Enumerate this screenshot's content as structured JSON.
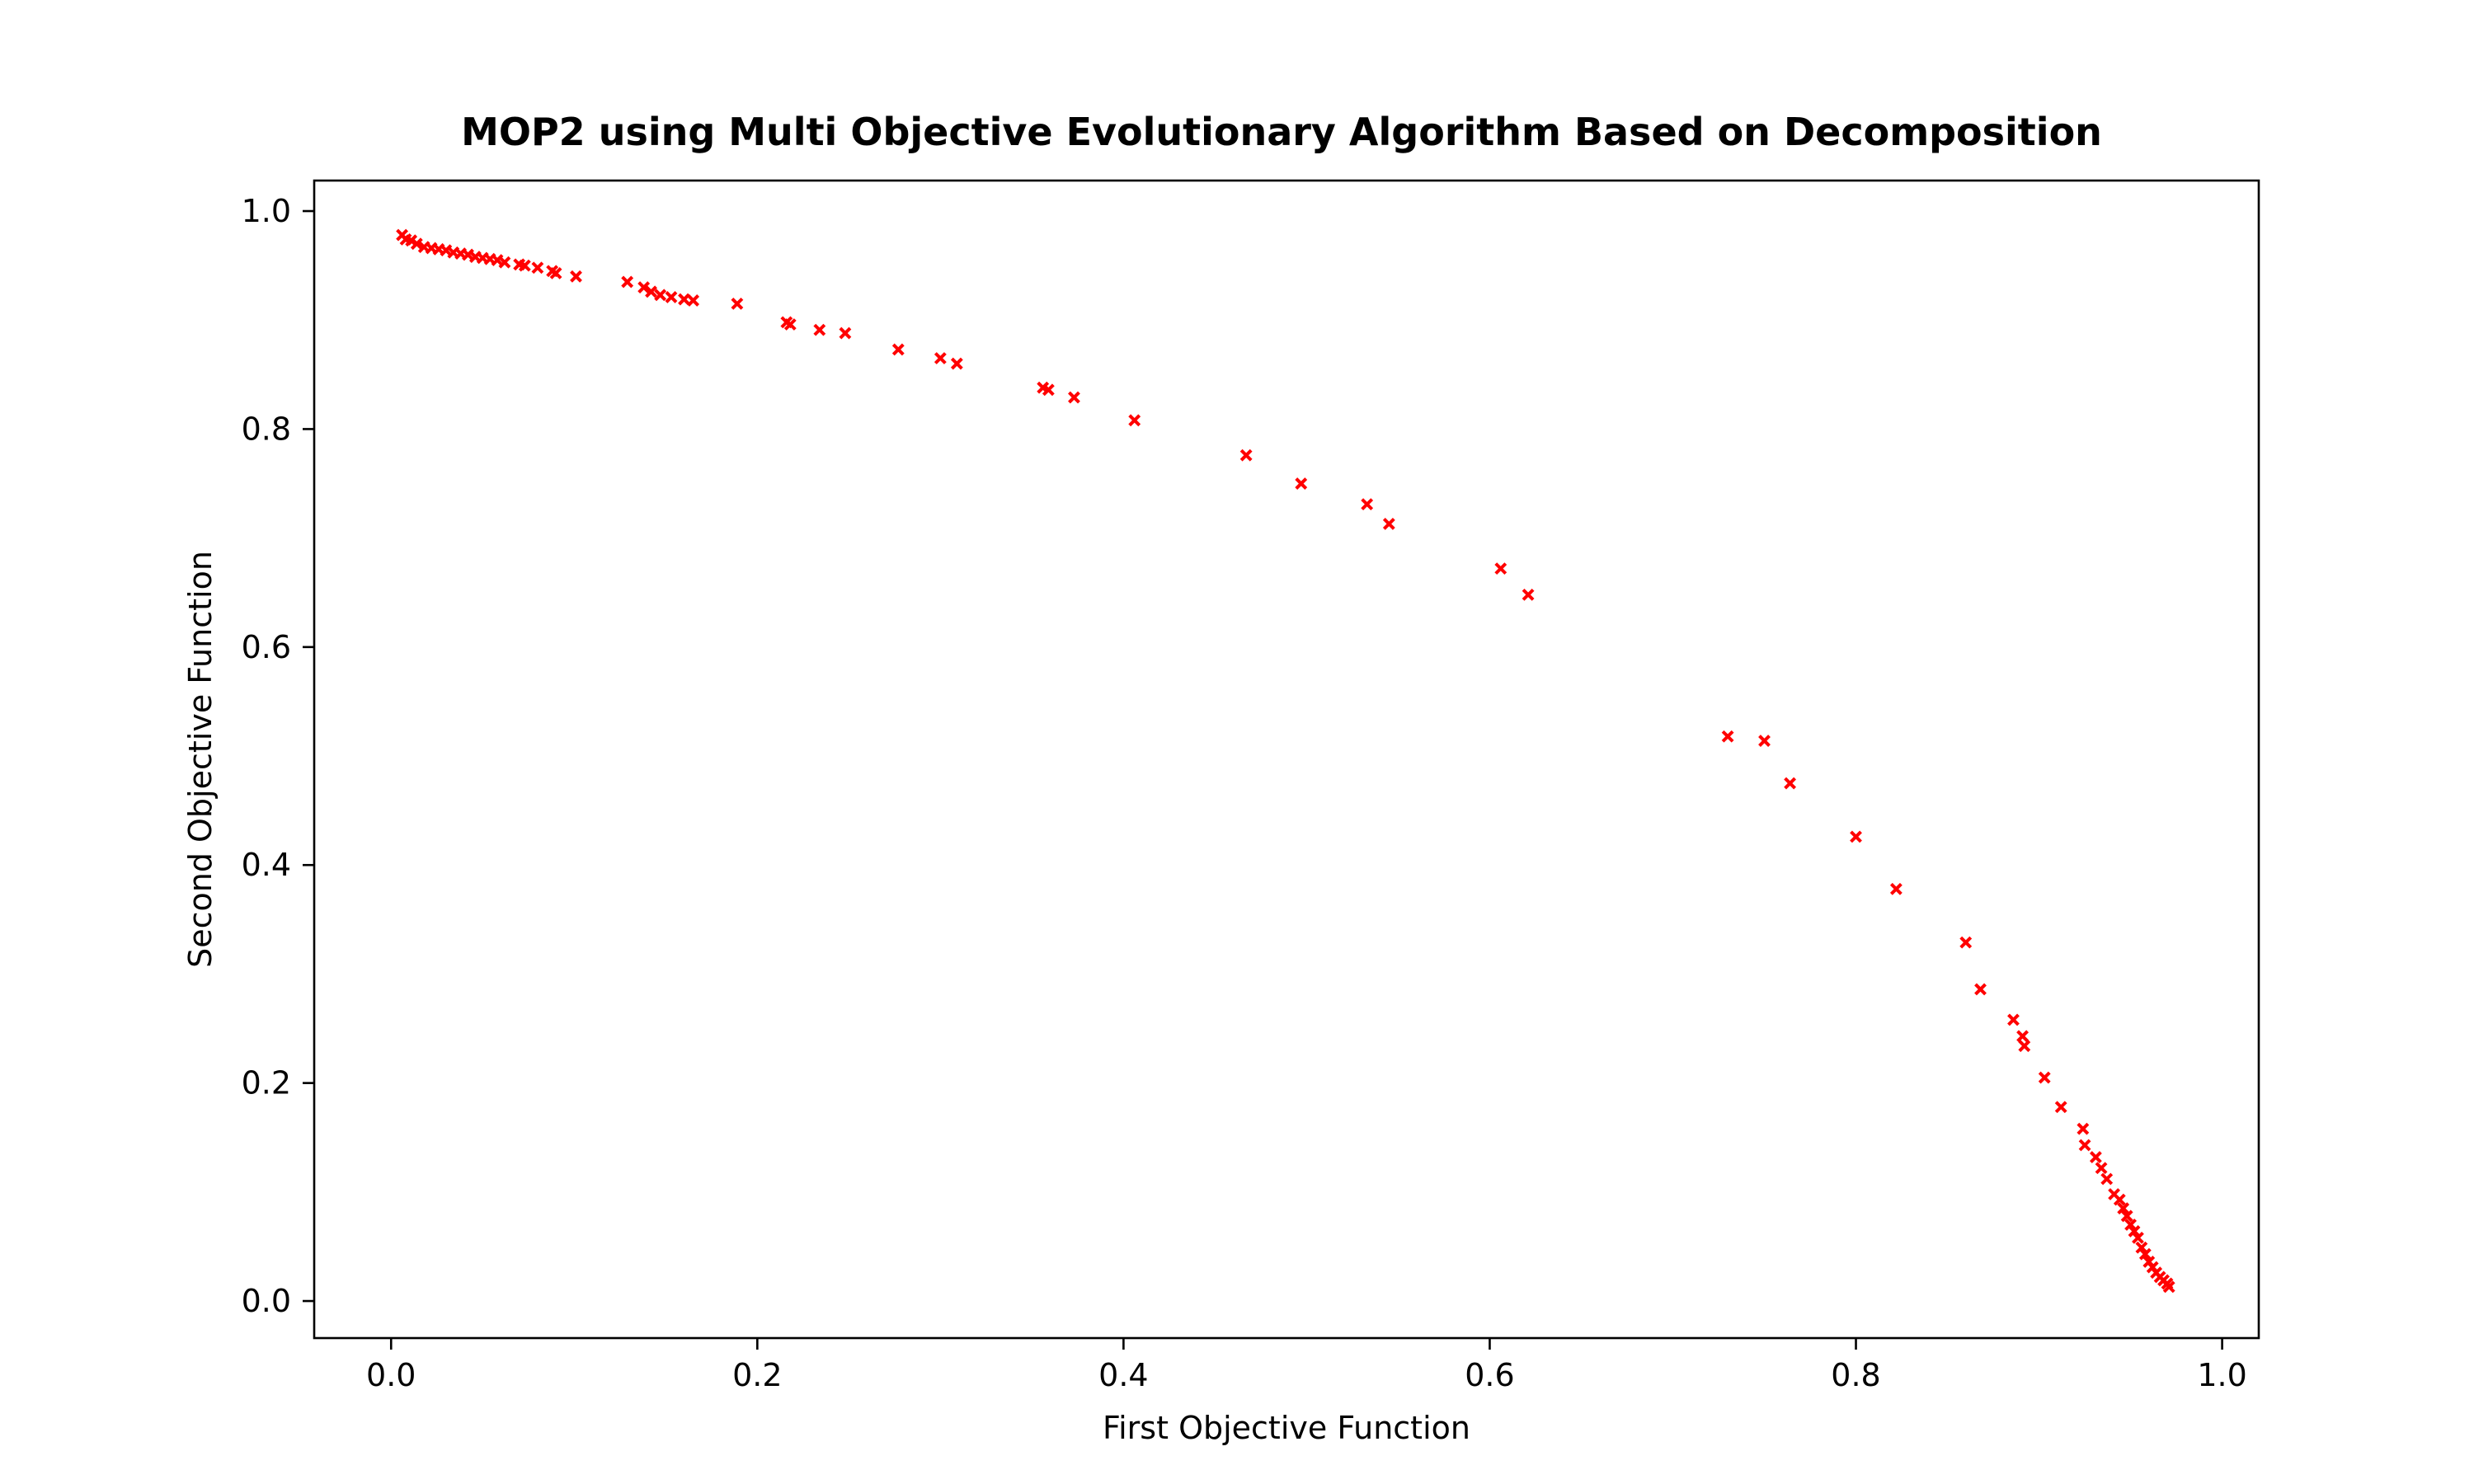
{
  "chart_data": {
    "type": "scatter",
    "title": "MOP2 using Multi Objective Evolutionary Algorithm Based on Decomposition",
    "xlabel": "First Objective Function",
    "ylabel": "Second Objective Function",
    "xlim": [
      -0.042,
      1.02
    ],
    "ylim": [
      -0.034,
      1.028
    ],
    "xticks": [
      "0.0",
      "0.2",
      "0.4",
      "0.6",
      "0.8",
      "1.0"
    ],
    "yticks": [
      "0.0",
      "0.2",
      "0.4",
      "0.6",
      "0.8",
      "1.0"
    ],
    "grid": false,
    "legend": "none",
    "marker": "x",
    "color": "#ff0000",
    "series": [
      {
        "x": [
          0.006,
          0.008,
          0.011,
          0.014,
          0.018,
          0.022,
          0.026,
          0.03,
          0.034,
          0.038,
          0.042,
          0.046,
          0.05,
          0.054,
          0.058,
          0.062,
          0.07,
          0.073,
          0.08,
          0.088,
          0.09,
          0.101,
          0.129,
          0.138,
          0.142,
          0.147,
          0.153,
          0.16,
          0.165,
          0.189,
          0.216,
          0.218,
          0.234,
          0.248,
          0.277,
          0.3,
          0.309,
          0.356,
          0.359,
          0.373,
          0.406,
          0.467,
          0.497,
          0.533,
          0.545,
          0.606,
          0.621,
          0.73,
          0.75,
          0.764,
          0.8,
          0.822,
          0.86,
          0.868,
          0.886,
          0.891,
          0.892,
          0.903,
          0.912,
          0.924,
          0.925,
          0.931,
          0.934,
          0.937,
          0.941,
          0.944,
          0.946,
          0.948,
          0.95,
          0.952,
          0.954,
          0.956,
          0.958,
          0.96,
          0.962,
          0.964,
          0.966,
          0.968,
          0.97,
          0.971
        ],
        "y": [
          0.978,
          0.974,
          0.973,
          0.97,
          0.967,
          0.966,
          0.965,
          0.964,
          0.962,
          0.961,
          0.96,
          0.958,
          0.957,
          0.956,
          0.955,
          0.953,
          0.951,
          0.95,
          0.948,
          0.945,
          0.943,
          0.94,
          0.935,
          0.93,
          0.926,
          0.923,
          0.921,
          0.919,
          0.918,
          0.915,
          0.898,
          0.896,
          0.891,
          0.888,
          0.873,
          0.865,
          0.86,
          0.838,
          0.836,
          0.829,
          0.808,
          0.776,
          0.75,
          0.731,
          0.713,
          0.672,
          0.648,
          0.518,
          0.514,
          0.475,
          0.426,
          0.378,
          0.329,
          0.286,
          0.258,
          0.243,
          0.234,
          0.205,
          0.178,
          0.158,
          0.143,
          0.132,
          0.122,
          0.112,
          0.098,
          0.093,
          0.085,
          0.078,
          0.07,
          0.064,
          0.058,
          0.049,
          0.043,
          0.036,
          0.031,
          0.026,
          0.022,
          0.019,
          0.016,
          0.013
        ]
      }
    ]
  }
}
